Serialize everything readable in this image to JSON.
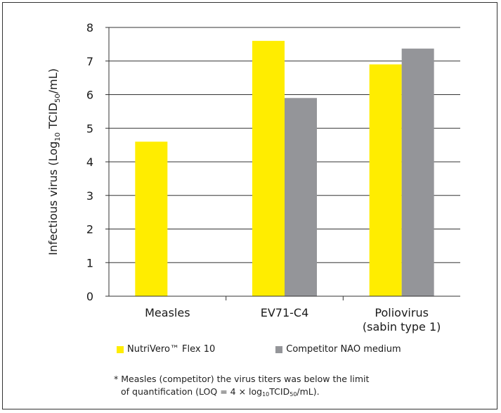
{
  "chart_data": {
    "type": "bar",
    "categories": [
      "Measles",
      "EV71-C4",
      "Poliovirus\n(sabin type 1)"
    ],
    "series": [
      {
        "name": "NutriVero™ Flex 10",
        "color": "#FFED00",
        "values": [
          4.6,
          7.6,
          6.9
        ]
      },
      {
        "name": "Competitor NAO medium",
        "color": "#949599",
        "values": [
          null,
          5.9,
          7.37
        ]
      }
    ],
    "ylabel": "Infectious virus (Log10 TCID50/mL)",
    "ylabel_parts": {
      "pre": "Infectious virus (Log",
      "sub1": "10",
      "mid": " TCID",
      "sub2": "50",
      "post": "/mL)"
    },
    "ylim": [
      0,
      8
    ],
    "yticks": [
      0,
      1,
      2,
      3,
      4,
      5,
      6,
      7,
      8
    ],
    "grid": true
  },
  "footnote": {
    "line1": "* Measles (competitor) the virus titers was below the limit",
    "line2_pre": "of quantification (LOQ = 4 × log",
    "line2_sub1": "10",
    "line2_mid": "TCID",
    "line2_sub2": "50",
    "line2_post": "/mL)."
  }
}
